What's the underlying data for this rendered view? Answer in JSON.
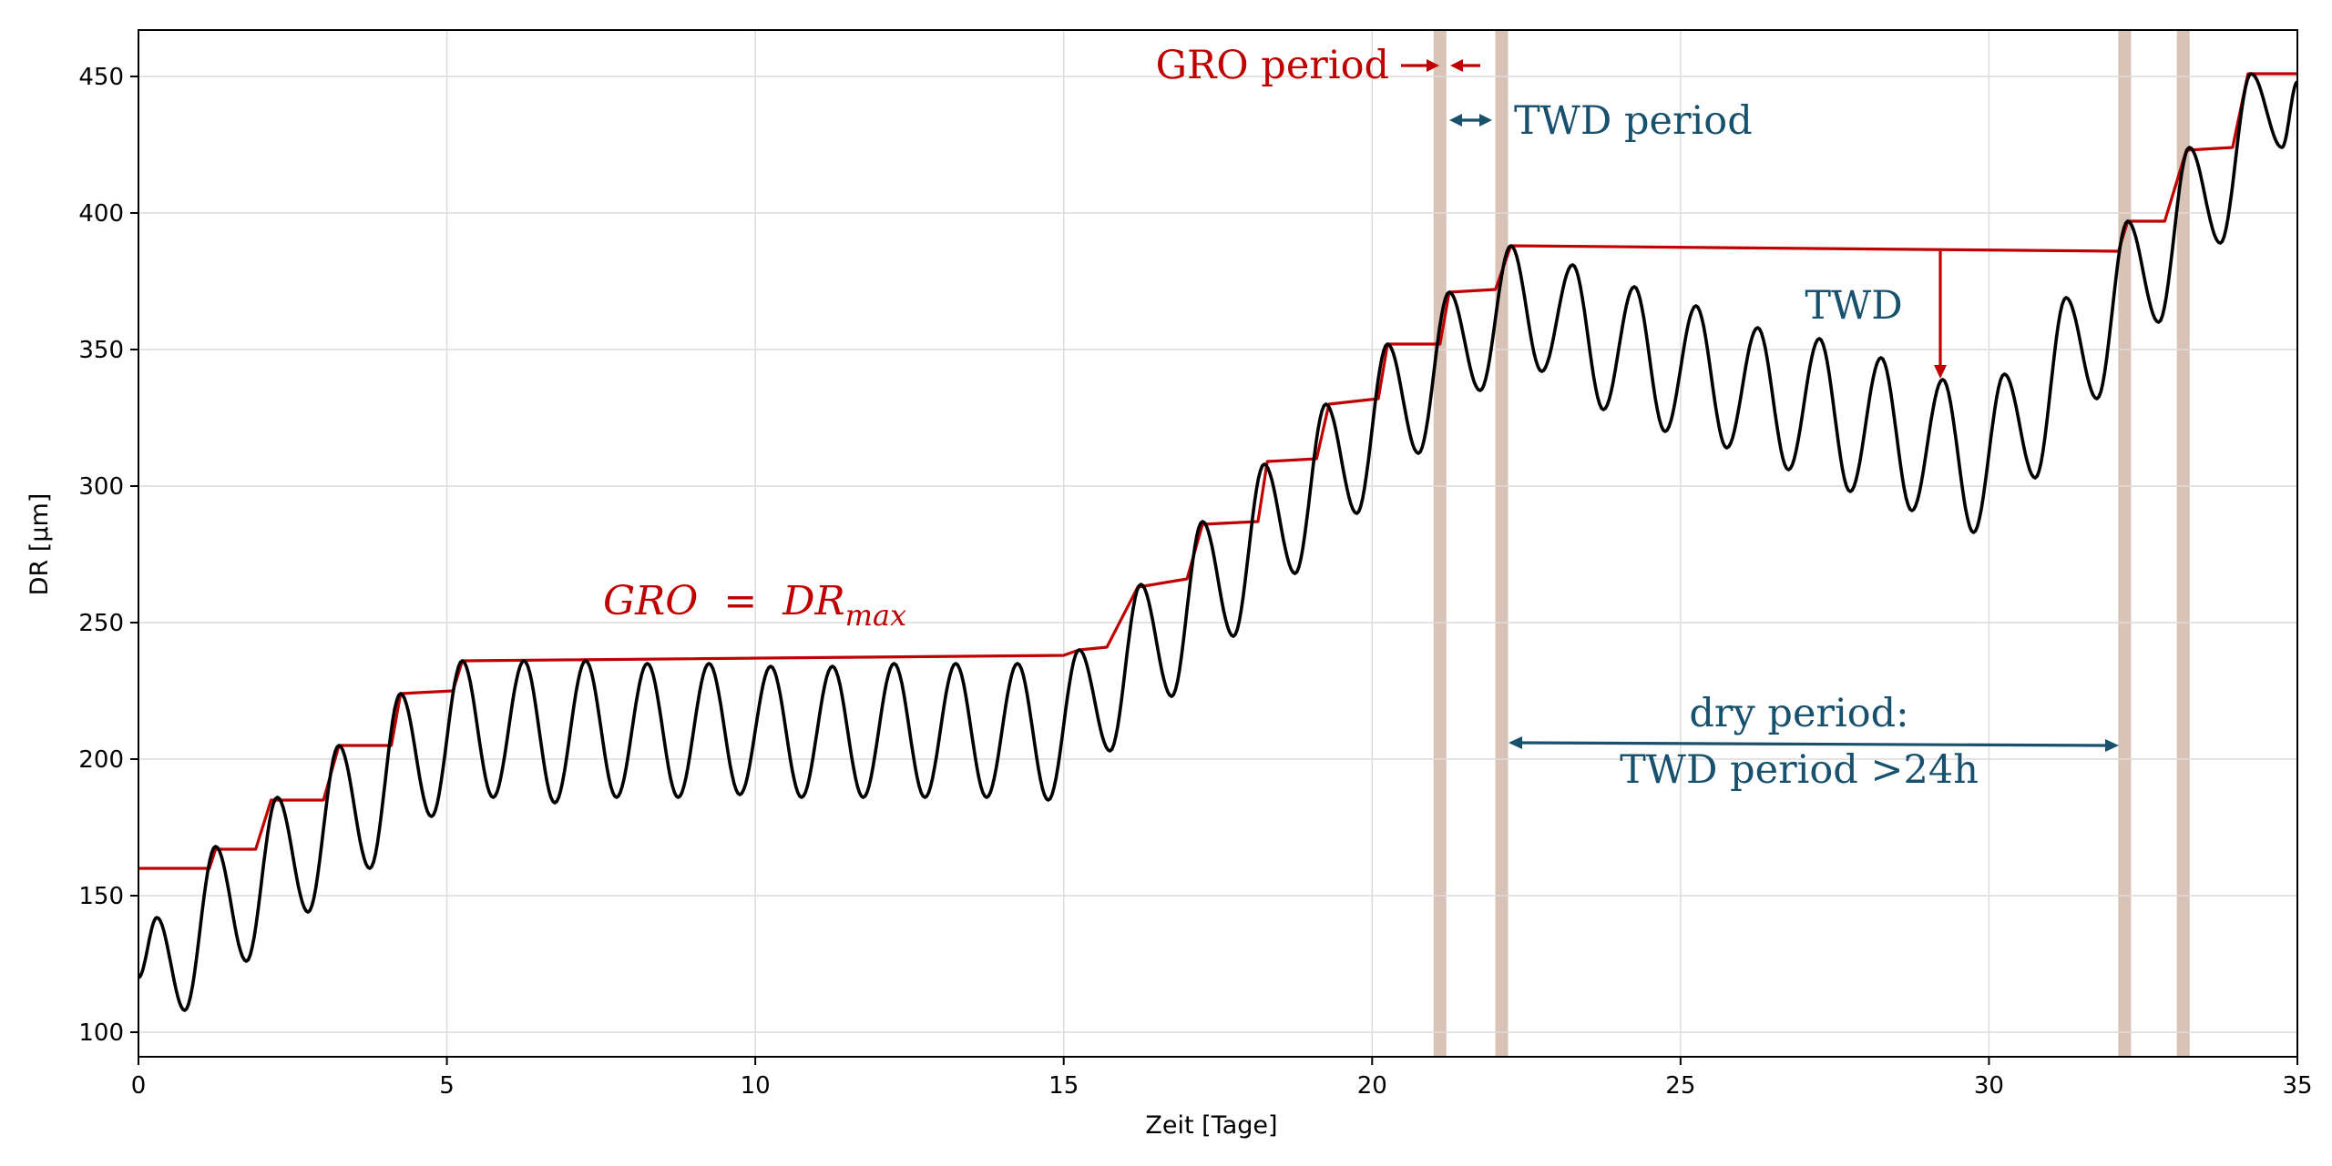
{
  "chart_data": {
    "type": "line",
    "xlabel": "Zeit [Tage]",
    "ylabel": "DR [µm]",
    "xlim": [
      0,
      35
    ],
    "ylim": [
      91,
      467
    ],
    "xticks": [
      0,
      5,
      10,
      15,
      20,
      25,
      30,
      35
    ],
    "yticks": [
      100,
      150,
      200,
      250,
      300,
      350,
      400,
      450
    ],
    "grid": true,
    "colors": {
      "dr": "#000000",
      "gro": "#c00000",
      "twd": "#17516e",
      "band": "#d9c2b6"
    },
    "bands_x": [
      21.1,
      22.1,
      32.2,
      33.15
    ],
    "dr_keypoints": [
      [
        0,
        120
      ],
      [
        0.3,
        142
      ],
      [
        0.75,
        108
      ],
      [
        1.25,
        168
      ],
      [
        1.75,
        126
      ],
      [
        2.25,
        186
      ],
      [
        2.75,
        144
      ],
      [
        3.25,
        205
      ],
      [
        3.75,
        160
      ],
      [
        4.25,
        224
      ],
      [
        4.75,
        179
      ],
      [
        5.25,
        236
      ],
      [
        5.75,
        186
      ],
      [
        6.25,
        236
      ],
      [
        6.75,
        184
      ],
      [
        7.25,
        236
      ],
      [
        7.75,
        186
      ],
      [
        8.25,
        235
      ],
      [
        8.75,
        186
      ],
      [
        9.25,
        235
      ],
      [
        9.75,
        187
      ],
      [
        10.25,
        234
      ],
      [
        10.75,
        186
      ],
      [
        11.25,
        234
      ],
      [
        11.75,
        186
      ],
      [
        12.25,
        235
      ],
      [
        12.75,
        186
      ],
      [
        13.25,
        235
      ],
      [
        13.75,
        186
      ],
      [
        14.25,
        235
      ],
      [
        14.75,
        185
      ],
      [
        15.25,
        240
      ],
      [
        15.75,
        203
      ],
      [
        16.25,
        264
      ],
      [
        16.75,
        223
      ],
      [
        17.25,
        287
      ],
      [
        17.75,
        245
      ],
      [
        18.25,
        308
      ],
      [
        18.75,
        268
      ],
      [
        19.25,
        330
      ],
      [
        19.75,
        290
      ],
      [
        20.25,
        352
      ],
      [
        20.75,
        312
      ],
      [
        21.25,
        371
      ],
      [
        21.75,
        335
      ],
      [
        22.25,
        388
      ],
      [
        22.75,
        342
      ],
      [
        23.25,
        381
      ],
      [
        23.75,
        328
      ],
      [
        24.25,
        373
      ],
      [
        24.75,
        320
      ],
      [
        25.25,
        366
      ],
      [
        25.75,
        314
      ],
      [
        26.25,
        358
      ],
      [
        26.75,
        306
      ],
      [
        27.25,
        354
      ],
      [
        27.75,
        298
      ],
      [
        28.25,
        347
      ],
      [
        28.75,
        291
      ],
      [
        29.25,
        339
      ],
      [
        29.75,
        283
      ],
      [
        30.25,
        341
      ],
      [
        30.75,
        303
      ],
      [
        31.25,
        369
      ],
      [
        31.75,
        332
      ],
      [
        32.25,
        397
      ],
      [
        32.75,
        360
      ],
      [
        33.25,
        424
      ],
      [
        33.75,
        389
      ],
      [
        34.25,
        451
      ],
      [
        34.75,
        424
      ],
      [
        35,
        448
      ]
    ],
    "gro_steps": [
      [
        0,
        160
      ],
      [
        1.15,
        160
      ],
      [
        1.25,
        167
      ],
      [
        1.9,
        167
      ],
      [
        2.15,
        185
      ],
      [
        3.0,
        185
      ],
      [
        3.25,
        205
      ],
      [
        4.1,
        205
      ],
      [
        4.25,
        224
      ],
      [
        5.1,
        225
      ],
      [
        5.25,
        236
      ],
      [
        15.0,
        238
      ],
      [
        15.25,
        240
      ],
      [
        15.7,
        241
      ],
      [
        16.2,
        263
      ],
      [
        17.0,
        266
      ],
      [
        17.25,
        286
      ],
      [
        18.15,
        287
      ],
      [
        18.3,
        309
      ],
      [
        19.1,
        310
      ],
      [
        19.3,
        330
      ],
      [
        20.1,
        332
      ],
      [
        20.25,
        352
      ],
      [
        21.1,
        352
      ],
      [
        21.25,
        371
      ],
      [
        22.0,
        372
      ],
      [
        22.25,
        388
      ],
      [
        32.1,
        386
      ],
      [
        32.25,
        397
      ],
      [
        32.85,
        397
      ],
      [
        33.2,
        423
      ],
      [
        33.95,
        424
      ],
      [
        34.2,
        451
      ],
      [
        35,
        451
      ]
    ],
    "annotations": {
      "gro_formula_lhs": "GRO",
      "gro_formula_eq": "=",
      "gro_formula_dr": "DR",
      "gro_formula_sub": "max",
      "gro_period": "GRO period",
      "twd_period": "TWD period",
      "twd": "TWD",
      "dry_period_line1": "dry period:",
      "dry_period_line2": "TWD period >24h"
    }
  }
}
